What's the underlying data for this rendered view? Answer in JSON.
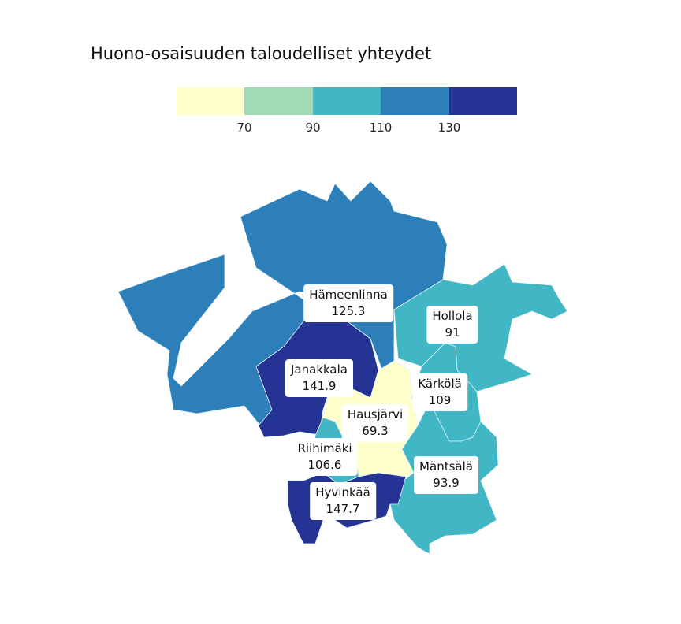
{
  "title": "Huono-osaisuuden taloudelliset yhteydet",
  "legend": {
    "colors": [
      "#ffffcc",
      "#a1dab4",
      "#41b6c4",
      "#2c7fb8",
      "#253494"
    ],
    "ticks": [
      "70",
      "90",
      "110",
      "130"
    ]
  },
  "regions": [
    {
      "name": "Hämeenlinna",
      "value": "125.3",
      "color": "#2c7fb8"
    },
    {
      "name": "Hollola",
      "value": "91",
      "color": "#41b6c4"
    },
    {
      "name": "Janakkala",
      "value": "141.9",
      "color": "#253494"
    },
    {
      "name": "Kärkölä",
      "value": "109",
      "color": "#41b6c4"
    },
    {
      "name": "Hausjärvi",
      "value": "69.3",
      "color": "#ffffcc"
    },
    {
      "name": "Riihimäki",
      "value": "106.6",
      "color": "#41b6c4"
    },
    {
      "name": "Mäntsälä",
      "value": "93.9",
      "color": "#41b6c4"
    },
    {
      "name": "Hyvinkää",
      "value": "147.7",
      "color": "#253494"
    }
  ]
}
